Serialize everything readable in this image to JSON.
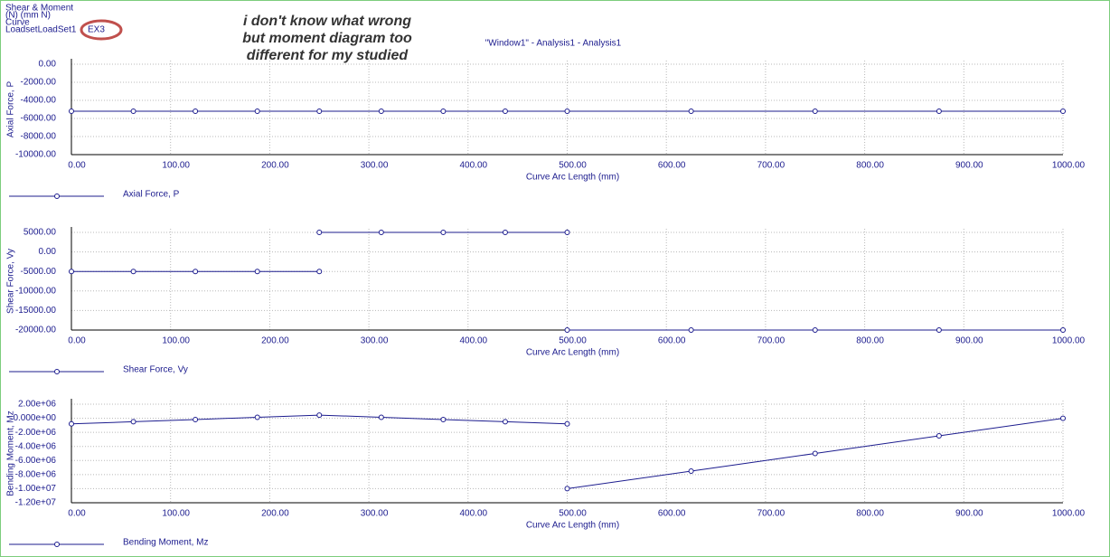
{
  "header": {
    "lines": [
      "Shear & Moment",
      "(N)  (mm N)",
      "Curve",
      "LoadsetLoadSet1"
    ],
    "curve_name": "EX3"
  },
  "annotation": [
    "i don't know what wrong",
    "but moment diagram too",
    "different for my studied"
  ],
  "window_title": "\"Window1\" - Analysis1 - Analysis1",
  "chart_data": [
    {
      "type": "line",
      "ylabel": "Axial Force, P",
      "xlabel": "Curve Arc Length (mm)",
      "grid": true,
      "xlim": [
        0,
        1000
      ],
      "ylim": [
        -10000,
        0
      ],
      "xticks": [
        {
          "value": 0,
          "label": "0.00"
        },
        {
          "value": 100,
          "label": "100.00"
        },
        {
          "value": 200,
          "label": "200.00"
        },
        {
          "value": 300,
          "label": "300.00"
        },
        {
          "value": 400,
          "label": "400.00"
        },
        {
          "value": 500,
          "label": "500.00"
        },
        {
          "value": 600,
          "label": "600.00"
        },
        {
          "value": 700,
          "label": "700.00"
        },
        {
          "value": 800,
          "label": "800.00"
        },
        {
          "value": 900,
          "label": "900.00"
        },
        {
          "value": 1000,
          "label": "1000.00"
        }
      ],
      "yticks": [
        {
          "value": 0,
          "label": "0.00"
        },
        {
          "value": -2000,
          "label": "-2000.00"
        },
        {
          "value": -4000,
          "label": "-4000.00"
        },
        {
          "value": -6000,
          "label": "-6000.00"
        },
        {
          "value": -8000,
          "label": "-8000.00"
        },
        {
          "value": -10000,
          "label": "-10000.00"
        }
      ],
      "x": [
        0,
        62.5,
        125,
        187.5,
        250,
        312.5,
        375,
        437.5,
        500,
        625,
        750,
        875,
        1000
      ],
      "series": [
        {
          "name": "Axial Force, P",
          "color": "#1c1c8e",
          "values": [
            -5200,
            -5200,
            -5200,
            -5200,
            -5200,
            -5200,
            -5200,
            -5200,
            -5200,
            -5200,
            -5200,
            -5200,
            -5200
          ]
        }
      ]
    },
    {
      "type": "line",
      "ylabel": "Shear Force, Vy",
      "xlabel": "Curve Arc Length (mm)",
      "grid": true,
      "xlim": [
        0,
        1000
      ],
      "ylim": [
        -20000,
        5000
      ],
      "xticks": [
        {
          "value": 0,
          "label": "0.00"
        },
        {
          "value": 100,
          "label": "100.00"
        },
        {
          "value": 200,
          "label": "200.00"
        },
        {
          "value": 300,
          "label": "300.00"
        },
        {
          "value": 400,
          "label": "400.00"
        },
        {
          "value": 500,
          "label": "500.00"
        },
        {
          "value": 600,
          "label": "600.00"
        },
        {
          "value": 700,
          "label": "700.00"
        },
        {
          "value": 800,
          "label": "800.00"
        },
        {
          "value": 900,
          "label": "900.00"
        },
        {
          "value": 1000,
          "label": "1000.00"
        }
      ],
      "yticks": [
        {
          "value": 5000,
          "label": "5000.00"
        },
        {
          "value": 0,
          "label": "0.00"
        },
        {
          "value": -5000,
          "label": "-5000.00"
        },
        {
          "value": -10000,
          "label": "-10000.00"
        },
        {
          "value": -15000,
          "label": "-15000.00"
        },
        {
          "value": -20000,
          "label": "-20000.00"
        }
      ],
      "x": [
        0,
        62.5,
        125,
        187.5,
        250,
        250,
        250,
        312.5,
        375,
        437.5,
        500,
        500,
        500,
        625,
        750,
        875,
        1000
      ],
      "series": [
        {
          "name": "Shear Force, Vy",
          "color": "#1c1c8e",
          "values": [
            -5000,
            -5000,
            -5000,
            -5000,
            -5000,
            null,
            5000,
            5000,
            5000,
            5000,
            5000,
            null,
            -20000,
            -20000,
            -20000,
            -20000,
            -20000
          ]
        }
      ]
    },
    {
      "type": "line",
      "ylabel": "Bending Moment, Mz",
      "xlabel": "Curve Arc Length (mm)",
      "grid": true,
      "xlim": [
        0,
        1000
      ],
      "ylim": [
        -12000000,
        2000000
      ],
      "xticks": [
        {
          "value": 0,
          "label": "0.00"
        },
        {
          "value": 100,
          "label": "100.00"
        },
        {
          "value": 200,
          "label": "200.00"
        },
        {
          "value": 300,
          "label": "300.00"
        },
        {
          "value": 400,
          "label": "400.00"
        },
        {
          "value": 500,
          "label": "500.00"
        },
        {
          "value": 600,
          "label": "600.00"
        },
        {
          "value": 700,
          "label": "700.00"
        },
        {
          "value": 800,
          "label": "800.00"
        },
        {
          "value": 900,
          "label": "900.00"
        },
        {
          "value": 1000,
          "label": "1000.00"
        }
      ],
      "yticks": [
        {
          "value": 2000000,
          "label": "2.00e+06"
        },
        {
          "value": 0,
          "label": "0.000e+00"
        },
        {
          "value": -2000000,
          "label": "-2.00e+06"
        },
        {
          "value": -4000000,
          "label": "-4.00e+06"
        },
        {
          "value": -6000000,
          "label": "-6.00e+06"
        },
        {
          "value": -8000000,
          "label": "-8.00e+06"
        },
        {
          "value": -10000000,
          "label": "-1.00e+07"
        },
        {
          "value": -12000000,
          "label": "-1.20e+07"
        }
      ],
      "x": [
        0,
        62.5,
        125,
        187.5,
        250,
        312.5,
        375,
        437.5,
        500,
        500,
        500,
        625,
        750,
        875,
        1000
      ],
      "series": [
        {
          "name": "Bending Moment, Mz",
          "color": "#1c1c8e",
          "values": [
            -800000,
            -490000,
            -180000,
            140000,
            450000,
            140000,
            -180000,
            -490000,
            -800000,
            null,
            -10000000,
            -7500000,
            -5000000,
            -2500000,
            0
          ]
        }
      ]
    }
  ]
}
